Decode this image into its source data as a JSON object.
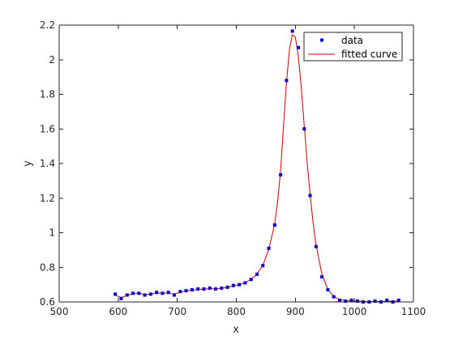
{
  "colors": {
    "data": "#0000cc",
    "fit": "#cc0000",
    "axis": "#262626",
    "legend_border": "#262626"
  },
  "chart_data": {
    "type": "scatter",
    "title": "",
    "xlabel": "x",
    "ylabel": "y",
    "xlim": [
      500,
      1100
    ],
    "ylim": [
      0.6,
      2.2
    ],
    "x_ticks": [
      500,
      600,
      700,
      800,
      900,
      1000,
      1100
    ],
    "y_ticks": [
      0.6,
      0.8,
      1,
      1.2,
      1.4,
      1.6,
      1.8,
      2,
      2.2
    ],
    "x_tick_labels": [
      "500",
      "600",
      "700",
      "800",
      "900",
      "1000",
      "1100"
    ],
    "y_tick_labels": [
      "0.6",
      "0.8",
      "1",
      "1.2",
      "1.4",
      "1.6",
      "1.8",
      "2",
      "2.2"
    ],
    "grid": false,
    "legend_position": "top-right",
    "legend": [
      "data",
      "fitted curve"
    ],
    "series": [
      {
        "name": "data",
        "style": "markers",
        "x": [
          595,
          605,
          615,
          625,
          635,
          645,
          655,
          665,
          675,
          685,
          695,
          705,
          715,
          725,
          735,
          745,
          755,
          765,
          775,
          785,
          795,
          805,
          815,
          825,
          835,
          845,
          855,
          865,
          875,
          885,
          895,
          905,
          915,
          925,
          935,
          945,
          955,
          965,
          975,
          985,
          995,
          1005,
          1015,
          1025,
          1035,
          1045,
          1055,
          1065,
          1075
        ],
        "y": [
          0.645,
          0.62,
          0.64,
          0.65,
          0.65,
          0.64,
          0.645,
          0.655,
          0.65,
          0.655,
          0.64,
          0.66,
          0.665,
          0.67,
          0.675,
          0.675,
          0.68,
          0.675,
          0.68,
          0.685,
          0.695,
          0.7,
          0.71,
          0.73,
          0.76,
          0.81,
          0.91,
          1.045,
          1.335,
          1.88,
          2.165,
          2.07,
          1.6,
          1.215,
          0.92,
          0.745,
          0.67,
          0.63,
          0.61,
          0.605,
          0.61,
          0.605,
          0.6,
          0.6,
          0.605,
          0.6,
          0.61,
          0.6,
          0.61
        ]
      },
      {
        "name": "fitted curve",
        "style": "line",
        "x": [
          595,
          605,
          615,
          625,
          635,
          645,
          655,
          665,
          675,
          685,
          695,
          705,
          715,
          725,
          735,
          745,
          755,
          765,
          775,
          785,
          795,
          805,
          815,
          825,
          835,
          845,
          855,
          865,
          870,
          875,
          880,
          885,
          890,
          895,
          900,
          905,
          910,
          915,
          920,
          925,
          930,
          935,
          945,
          955,
          965,
          975,
          985,
          995,
          1005,
          1015,
          1025,
          1035,
          1045,
          1055,
          1065,
          1075
        ],
        "y": [
          0.64,
          0.625,
          0.638,
          0.648,
          0.65,
          0.642,
          0.645,
          0.652,
          0.65,
          0.652,
          0.645,
          0.657,
          0.663,
          0.668,
          0.672,
          0.674,
          0.677,
          0.676,
          0.679,
          0.685,
          0.693,
          0.7,
          0.712,
          0.73,
          0.762,
          0.812,
          0.905,
          1.05,
          1.18,
          1.36,
          1.62,
          1.87,
          2.06,
          2.145,
          2.13,
          2.02,
          1.84,
          1.62,
          1.41,
          1.22,
          1.06,
          0.93,
          0.76,
          0.672,
          0.632,
          0.614,
          0.607,
          0.606,
          0.605,
          0.603,
          0.602,
          0.603,
          0.602,
          0.605,
          0.603,
          0.607
        ]
      }
    ]
  }
}
